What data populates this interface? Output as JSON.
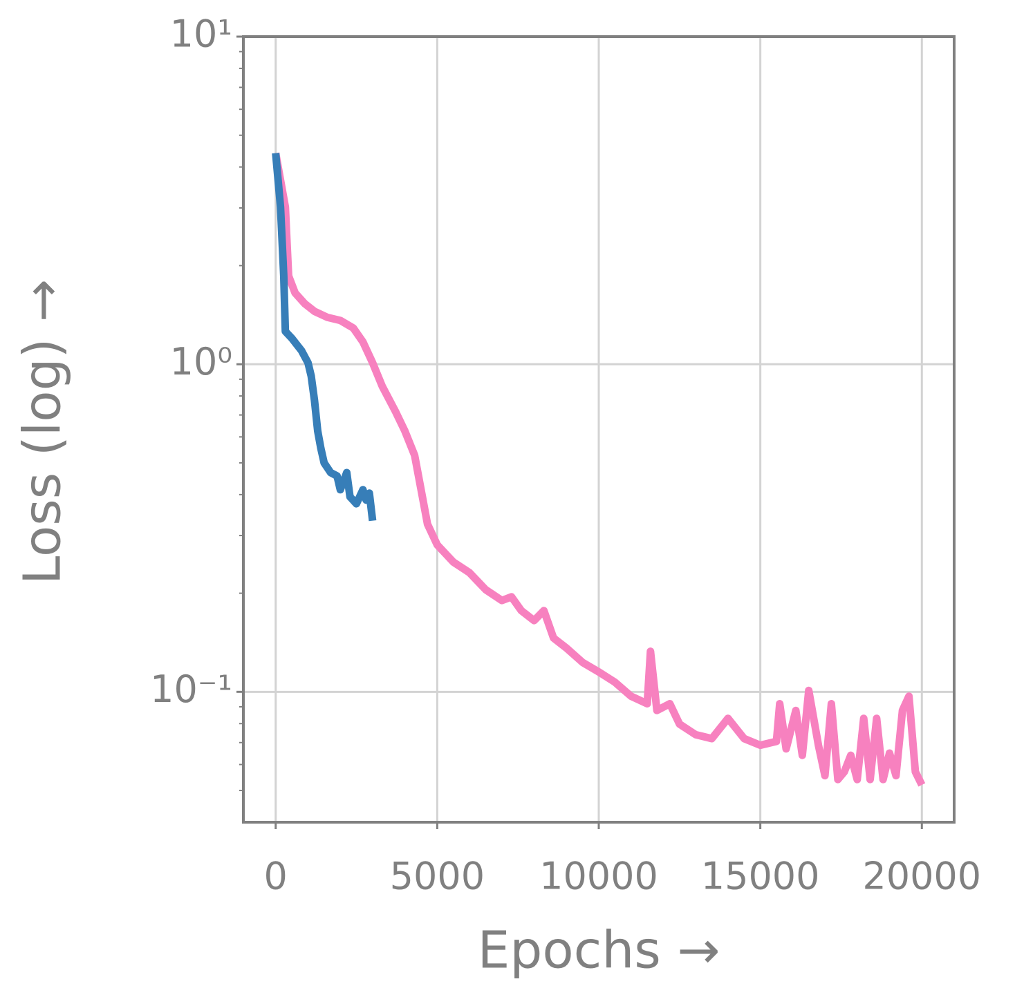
{
  "chart_data": {
    "type": "line",
    "xlabel": "Epochs →",
    "ylabel": "Loss (log) →",
    "xlim": [
      -1000,
      21000
    ],
    "xticks": [
      0,
      5000,
      10000,
      15000,
      20000
    ],
    "ylim": [
      0.04,
      10
    ],
    "yscale": "log",
    "yticks": [
      {
        "value": 10,
        "label": "10¹"
      },
      {
        "value": 1,
        "label": "10⁰"
      },
      {
        "value": 0.1,
        "label": "10⁻¹"
      }
    ],
    "yminorticks": [
      0.05,
      0.06,
      0.07,
      0.08,
      0.09,
      0.2,
      0.3,
      0.4,
      0.5,
      0.6,
      0.7,
      0.8,
      0.9,
      2,
      3,
      4,
      5,
      6,
      7,
      8,
      9
    ],
    "grid": true,
    "series": [
      {
        "color": "#f781bf",
        "x": [
          0,
          300,
          400,
          600,
          900,
          1200,
          1600,
          2000,
          2400,
          2700,
          3000,
          3300,
          3700,
          4000,
          4300,
          4500,
          4700,
          5000,
          5500,
          6000,
          6500,
          7000,
          7300,
          7600,
          8000,
          8300,
          8600,
          9000,
          9500,
          10000,
          10500,
          11000,
          11500,
          11600,
          11800,
          12200,
          12500,
          13000,
          13500,
          14000,
          14500,
          15000,
          15500,
          15600,
          15800,
          16100,
          16300,
          16500,
          16800,
          17000,
          17200,
          17400,
          17600,
          17800,
          18000,
          18200,
          18400,
          18600,
          18800,
          19000,
          19200,
          19400,
          19600,
          19800,
          20000
        ],
        "values": [
          4.41,
          3.02,
          1.86,
          1.65,
          1.53,
          1.45,
          1.39,
          1.36,
          1.29,
          1.17,
          1.01,
          0.856,
          0.72,
          0.625,
          0.527,
          0.414,
          0.325,
          0.281,
          0.249,
          0.231,
          0.205,
          0.19,
          0.195,
          0.177,
          0.165,
          0.177,
          0.146,
          0.136,
          0.123,
          0.115,
          0.107,
          0.097,
          0.092,
          0.133,
          0.0877,
          0.092,
          0.0797,
          0.074,
          0.072,
          0.083,
          0.072,
          0.0687,
          0.0706,
          0.092,
          0.067,
          0.0877,
          0.064,
          0.101,
          0.0687,
          0.0555,
          0.092,
          0.054,
          0.057,
          0.064,
          0.054,
          0.083,
          0.054,
          0.083,
          0.054,
          0.065,
          0.0555,
          0.0877,
          0.097,
          0.057,
          0.052
        ]
      },
      {
        "color": "#377eb8",
        "x": [
          0,
          150,
          250,
          300,
          500,
          800,
          1000,
          1100,
          1200,
          1300,
          1400,
          1500,
          1700,
          1900,
          2000,
          2200,
          2300,
          2500,
          2700,
          2800,
          2900,
          3000
        ],
        "values": [
          4.41,
          3.02,
          1.86,
          1.26,
          1.2,
          1.1,
          1.01,
          0.92,
          0.777,
          0.625,
          0.553,
          0.5,
          0.467,
          0.456,
          0.414,
          0.467,
          0.394,
          0.375,
          0.414,
          0.385,
          0.404,
          0.333
        ]
      }
    ]
  }
}
